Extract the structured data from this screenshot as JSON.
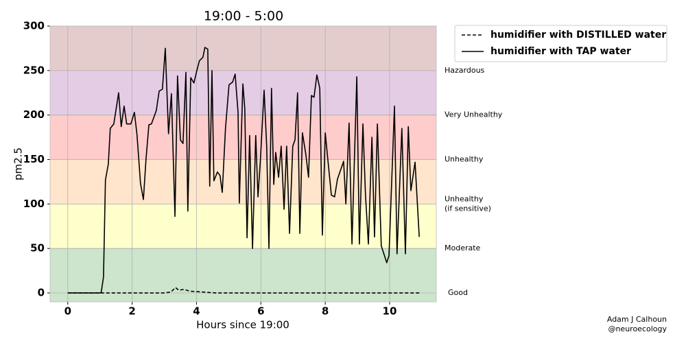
{
  "chart_data": {
    "type": "line",
    "title": "19:00 - 5:00",
    "xlabel": "Hours since 19:00",
    "ylabel": "pm2.5",
    "xlim": [
      -0.55,
      11.45
    ],
    "ylim": [
      -10,
      300
    ],
    "xticks": [
      0,
      2,
      4,
      6,
      8,
      10
    ],
    "yticks": [
      0,
      50,
      100,
      150,
      200,
      250,
      300
    ],
    "grid": true,
    "legend": "outside upper right",
    "bands": [
      {
        "label": "Good",
        "range": [
          0,
          50
        ],
        "color": "#cce5cc"
      },
      {
        "label": "Moderate",
        "range": [
          50,
          100
        ],
        "color": "#ffffcc"
      },
      {
        "label": [
          "Unhealthy",
          "(if sensitive)"
        ],
        "range": [
          100,
          150
        ],
        "color": "#ffe5cc"
      },
      {
        "label": "Unhealthy",
        "range": [
          150,
          200
        ],
        "color": "#ffcccc"
      },
      {
        "label": "Very Unhealthy",
        "range": [
          200,
          250
        ],
        "color": "#e5cce5"
      },
      {
        "label": "Hazardous",
        "range": [
          250,
          300
        ],
        "color": "#e5cccc"
      }
    ],
    "series": [
      {
        "name": "humidifier with DISTILLED water",
        "color": "#000000",
        "linestyle": "dashed",
        "x": [
          0,
          3,
          3.2,
          3.35,
          3.45,
          3.6,
          3.8,
          4.2,
          4.6,
          10.92
        ],
        "values": [
          0,
          0,
          1,
          6,
          3,
          4,
          2,
          1,
          0,
          0
        ]
      },
      {
        "name": "humidifier with TAP water",
        "color": "#000000",
        "linestyle": "solid",
        "x": [
          0,
          1.0,
          1.04,
          1.11,
          1.17,
          1.26,
          1.32,
          1.43,
          1.58,
          1.66,
          1.75,
          1.83,
          1.96,
          2.07,
          2.15,
          2.26,
          2.35,
          2.43,
          2.52,
          2.6,
          2.75,
          2.84,
          2.94,
          3.03,
          3.13,
          3.22,
          3.33,
          3.41,
          3.5,
          3.58,
          3.67,
          3.73,
          3.82,
          3.92,
          4.01,
          4.09,
          4.2,
          4.26,
          4.35,
          4.41,
          4.48,
          4.54,
          4.65,
          4.73,
          4.8,
          4.9,
          5.01,
          5.12,
          5.2,
          5.29,
          5.33,
          5.44,
          5.5,
          5.57,
          5.65,
          5.74,
          5.84,
          5.91,
          5.99,
          6.1,
          6.18,
          6.25,
          6.33,
          6.4,
          6.46,
          6.55,
          6.63,
          6.72,
          6.8,
          6.89,
          6.99,
          7.06,
          7.14,
          7.21,
          7.29,
          7.4,
          7.48,
          7.57,
          7.65,
          7.74,
          7.83,
          7.91,
          8.0,
          8.08,
          8.19,
          8.29,
          8.38,
          8.57,
          8.64,
          8.74,
          8.83,
          8.98,
          9.06,
          9.17,
          9.25,
          9.34,
          9.45,
          9.53,
          9.62,
          9.74,
          9.91,
          9.98,
          10.15,
          10.23,
          10.38,
          10.49,
          10.58,
          10.66,
          10.79,
          10.92
        ],
        "values": [
          0,
          0,
          1,
          18,
          127,
          145,
          185,
          190,
          225,
          187,
          210,
          190,
          190,
          203,
          178,
          123,
          105,
          150,
          189,
          190,
          205,
          227,
          229,
          275,
          179,
          224,
          86,
          244,
          172,
          168,
          248,
          92,
          242,
          236,
          250,
          261,
          265,
          276,
          274,
          120,
          250,
          126,
          136,
          132,
          113,
          185,
          234,
          237,
          246,
          203,
          101,
          235,
          207,
          62,
          177,
          50,
          177,
          108,
          153,
          228,
          165,
          50,
          230,
          122,
          158,
          130,
          165,
          94,
          165,
          67,
          165,
          172,
          225,
          67,
          180,
          155,
          130,
          222,
          220,
          245,
          230,
          65,
          180,
          150,
          110,
          108,
          128,
          148,
          100,
          191,
          55,
          243,
          55,
          190,
          110,
          55,
          175,
          63,
          190,
          53,
          34,
          42,
          210,
          44,
          185,
          44,
          187,
          115,
          147,
          63
        ]
      }
    ],
    "annotations": [
      "Adam J Calhoun",
      "@neuroecology"
    ]
  }
}
